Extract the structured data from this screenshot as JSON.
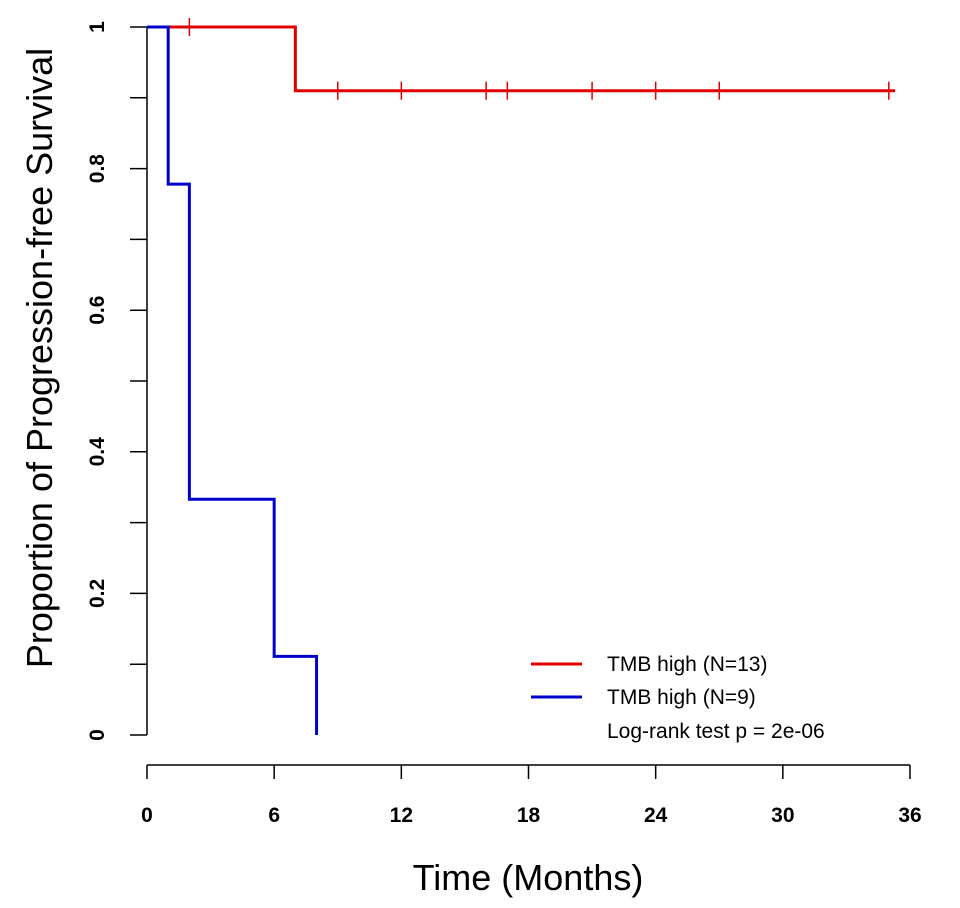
{
  "chart_data": {
    "type": "line",
    "subtype": "kaplan-meier",
    "title": "",
    "xlabel": "Time (Months)",
    "ylabel": "Proportion of Progression-free Survival",
    "xlim": [
      0,
      36
    ],
    "ylim": [
      0,
      1
    ],
    "xticks": [
      0,
      6,
      12,
      18,
      24,
      30,
      36
    ],
    "xtick_labels": [
      "0",
      "6",
      "12",
      "18",
      "24",
      "30",
      "36"
    ],
    "yticks": [
      0,
      0.1,
      0.2,
      0.3,
      0.4,
      0.5,
      0.6,
      0.7,
      0.8,
      0.9,
      1.0
    ],
    "ytick_labels": [
      {
        "value": 0,
        "label": "0"
      },
      {
        "value": 0.2,
        "label": "0.2"
      },
      {
        "value": 0.4,
        "label": "0.4"
      },
      {
        "value": 0.6,
        "label": "0.6"
      },
      {
        "value": 0.8,
        "label": "0.8"
      },
      {
        "value": 1.0,
        "label": "1"
      }
    ],
    "grid": false,
    "legend_position": "bottom-right",
    "series": [
      {
        "name": "TMB high (N=13)",
        "color": "#e00000",
        "steps": [
          {
            "x": 0,
            "y": 1.0
          },
          {
            "x": 7,
            "y": 0.91
          },
          {
            "x": 35.3,
            "y": 0.91
          }
        ],
        "censored": [
          {
            "x": 2,
            "y": 1.0
          },
          {
            "x": 9,
            "y": 0.91
          },
          {
            "x": 12,
            "y": 0.91
          },
          {
            "x": 16,
            "y": 0.91
          },
          {
            "x": 17,
            "y": 0.91
          },
          {
            "x": 21,
            "y": 0.91
          },
          {
            "x": 24,
            "y": 0.91
          },
          {
            "x": 27,
            "y": 0.91
          },
          {
            "x": 35,
            "y": 0.91
          }
        ]
      },
      {
        "name": "TMB high (N=9)",
        "color": "#0000cc",
        "steps": [
          {
            "x": 0,
            "y": 1.0
          },
          {
            "x": 1,
            "y": 0.778
          },
          {
            "x": 2,
            "y": 0.333
          },
          {
            "x": 6,
            "y": 0.111
          },
          {
            "x": 8,
            "y": 0.0
          }
        ],
        "censored": []
      }
    ],
    "annotation": "Log-rank test p = 2e-06"
  }
}
